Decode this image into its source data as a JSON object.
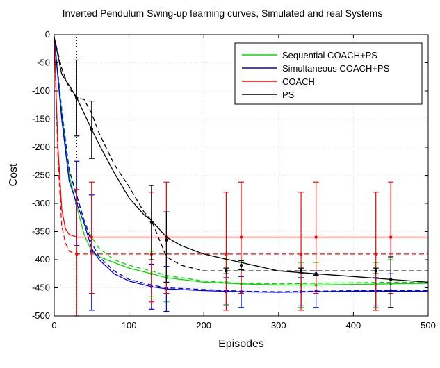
{
  "chart_data": {
    "type": "line",
    "title": "Inverted Pendulum Swing-up learning curves, Simulated and real Systems",
    "xlabel": "Episodes",
    "ylabel": "Cost",
    "xlim": [
      0,
      500
    ],
    "ylim": [
      -500,
      0
    ],
    "xticks": [
      0,
      100,
      200,
      300,
      400,
      500
    ],
    "yticks": [
      0,
      -50,
      -100,
      -150,
      -200,
      -250,
      -300,
      -350,
      -400,
      -450,
      -500
    ],
    "grid": true,
    "legend_position": "top-right",
    "markers": [
      {
        "x": 30,
        "style": "dotted",
        "color": "#000000"
      }
    ],
    "series": [
      {
        "name": "Sequential COACH+PS",
        "color": "#00dd00",
        "solid": [
          [
            0,
            -5
          ],
          [
            10,
            -140
          ],
          [
            20,
            -250
          ],
          [
            30,
            -305
          ],
          [
            40,
            -355
          ],
          [
            50,
            -385
          ],
          [
            60,
            -395
          ],
          [
            80,
            -405
          ],
          [
            100,
            -415
          ],
          [
            130,
            -425
          ],
          [
            150,
            -432
          ],
          [
            200,
            -440
          ],
          [
            250,
            -443
          ],
          [
            300,
            -445
          ],
          [
            350,
            -445
          ],
          [
            400,
            -444
          ],
          [
            450,
            -443
          ],
          [
            500,
            -442
          ]
        ],
        "dashed": [
          [
            0,
            -5
          ],
          [
            10,
            -130
          ],
          [
            20,
            -240
          ],
          [
            30,
            -290
          ],
          [
            40,
            -330
          ],
          [
            50,
            -360
          ],
          [
            60,
            -380
          ],
          [
            80,
            -400
          ],
          [
            100,
            -410
          ],
          [
            130,
            -420
          ],
          [
            150,
            -428
          ],
          [
            200,
            -438
          ],
          [
            250,
            -442
          ],
          [
            300,
            -443
          ],
          [
            350,
            -442
          ],
          [
            400,
            -441
          ],
          [
            450,
            -440
          ],
          [
            500,
            -440
          ]
        ],
        "errorbars": [
          [
            130,
            -425,
            -465,
            -385
          ],
          [
            150,
            -432,
            -475,
            -390
          ],
          [
            230,
            -440,
            -480,
            -400
          ],
          [
            250,
            -443,
            -485,
            -405
          ],
          [
            330,
            -445,
            -485,
            -405
          ],
          [
            350,
            -445,
            -485,
            -405
          ],
          [
            430,
            -444,
            -485,
            -405
          ],
          [
            450,
            -443,
            -485,
            -400
          ]
        ]
      },
      {
        "name": "Simultaneous COACH+PS",
        "color": "#0000ee",
        "solid": [
          [
            0,
            -5
          ],
          [
            10,
            -150
          ],
          [
            20,
            -260
          ],
          [
            30,
            -300
          ],
          [
            40,
            -335
          ],
          [
            50,
            -380
          ],
          [
            60,
            -400
          ],
          [
            80,
            -425
          ],
          [
            100,
            -438
          ],
          [
            130,
            -448
          ],
          [
            150,
            -452
          ],
          [
            200,
            -455
          ],
          [
            250,
            -457
          ],
          [
            300,
            -458
          ],
          [
            350,
            -457
          ],
          [
            400,
            -456
          ],
          [
            450,
            -456
          ],
          [
            500,
            -456
          ]
        ],
        "dashed": [
          [
            0,
            -5
          ],
          [
            10,
            -140
          ],
          [
            20,
            -240
          ],
          [
            30,
            -285
          ],
          [
            40,
            -330
          ],
          [
            50,
            -370
          ],
          [
            60,
            -395
          ],
          [
            80,
            -420
          ],
          [
            100,
            -435
          ],
          [
            130,
            -445
          ],
          [
            150,
            -450
          ],
          [
            200,
            -453
          ],
          [
            250,
            -456
          ],
          [
            300,
            -457
          ],
          [
            350,
            -456
          ],
          [
            400,
            -455
          ],
          [
            450,
            -455
          ],
          [
            500,
            -455
          ]
        ],
        "errorbars": [
          [
            30,
            -300,
            -375,
            -225
          ],
          [
            50,
            -385,
            -490,
            -285
          ],
          [
            130,
            -448,
            -488,
            -408
          ],
          [
            150,
            -452,
            -492,
            -412
          ],
          [
            230,
            -457,
            -482,
            -432
          ],
          [
            250,
            -457,
            -485,
            -430
          ],
          [
            330,
            -457,
            -482,
            -432
          ],
          [
            350,
            -456,
            -485,
            -427
          ],
          [
            430,
            -456,
            -482,
            -432
          ],
          [
            450,
            -455,
            -485,
            -425
          ]
        ]
      },
      {
        "name": "COACH",
        "color": "#ff0000",
        "solid": [
          [
            0,
            -5
          ],
          [
            5,
            -200
          ],
          [
            10,
            -310
          ],
          [
            15,
            -345
          ],
          [
            20,
            -355
          ],
          [
            30,
            -360
          ],
          [
            50,
            -360
          ],
          [
            100,
            -360
          ],
          [
            200,
            -360
          ],
          [
            300,
            -360
          ],
          [
            400,
            -360
          ],
          [
            500,
            -360
          ]
        ],
        "dashed": [
          [
            0,
            -5
          ],
          [
            5,
            -220
          ],
          [
            10,
            -340
          ],
          [
            15,
            -370
          ],
          [
            20,
            -385
          ],
          [
            30,
            -390
          ],
          [
            50,
            -390
          ],
          [
            100,
            -390
          ],
          [
            200,
            -390
          ],
          [
            300,
            -390
          ],
          [
            400,
            -390
          ],
          [
            500,
            -390
          ]
        ],
        "errorbars": [
          [
            30,
            -390,
            -500,
            -275
          ],
          [
            50,
            -360,
            -460,
            -262
          ],
          [
            130,
            -390,
            -475,
            -280
          ],
          [
            150,
            -360,
            -460,
            -262
          ],
          [
            230,
            -390,
            -490,
            -280
          ],
          [
            250,
            -360,
            -460,
            -262
          ],
          [
            330,
            -390,
            -490,
            -280
          ],
          [
            350,
            -360,
            -460,
            -262
          ],
          [
            430,
            -390,
            -490,
            -280
          ],
          [
            450,
            -360,
            -460,
            -262
          ]
        ]
      },
      {
        "name": "PS",
        "color": "#000000",
        "solid": [
          [
            0,
            -5
          ],
          [
            10,
            -70
          ],
          [
            20,
            -90
          ],
          [
            30,
            -112
          ],
          [
            40,
            -140
          ],
          [
            50,
            -168
          ],
          [
            60,
            -195
          ],
          [
            80,
            -245
          ],
          [
            100,
            -290
          ],
          [
            120,
            -320
          ],
          [
            130,
            -330
          ],
          [
            150,
            -360
          ],
          [
            170,
            -375
          ],
          [
            200,
            -390
          ],
          [
            250,
            -405
          ],
          [
            300,
            -420
          ],
          [
            350,
            -425
          ],
          [
            400,
            -430
          ],
          [
            450,
            -435
          ],
          [
            500,
            -440
          ]
        ],
        "dashed": [
          [
            0,
            -5
          ],
          [
            10,
            -60
          ],
          [
            20,
            -95
          ],
          [
            30,
            -112
          ],
          [
            40,
            -115
          ],
          [
            50,
            -140
          ],
          [
            60,
            -175
          ],
          [
            80,
            -230
          ],
          [
            100,
            -270
          ],
          [
            120,
            -315
          ],
          [
            130,
            -330
          ],
          [
            150,
            -395
          ],
          [
            170,
            -410
          ],
          [
            200,
            -420
          ],
          [
            300,
            -420
          ],
          [
            350,
            -420
          ],
          [
            400,
            -420
          ],
          [
            450,
            -420
          ],
          [
            500,
            -420
          ]
        ],
        "errorbars": [
          [
            30,
            -112,
            -180,
            -45
          ],
          [
            50,
            -168,
            -220,
            -118
          ],
          [
            130,
            -333,
            -400,
            -268
          ],
          [
            150,
            -365,
            -440,
            -315
          ],
          [
            230,
            -420,
            -425,
            -415
          ],
          [
            250,
            -410,
            -418,
            -402
          ],
          [
            330,
            -420,
            -425,
            -415
          ],
          [
            350,
            -425,
            -428,
            -420
          ],
          [
            430,
            -420,
            -425,
            -415
          ],
          [
            450,
            -435,
            -485,
            -395
          ]
        ]
      }
    ]
  }
}
